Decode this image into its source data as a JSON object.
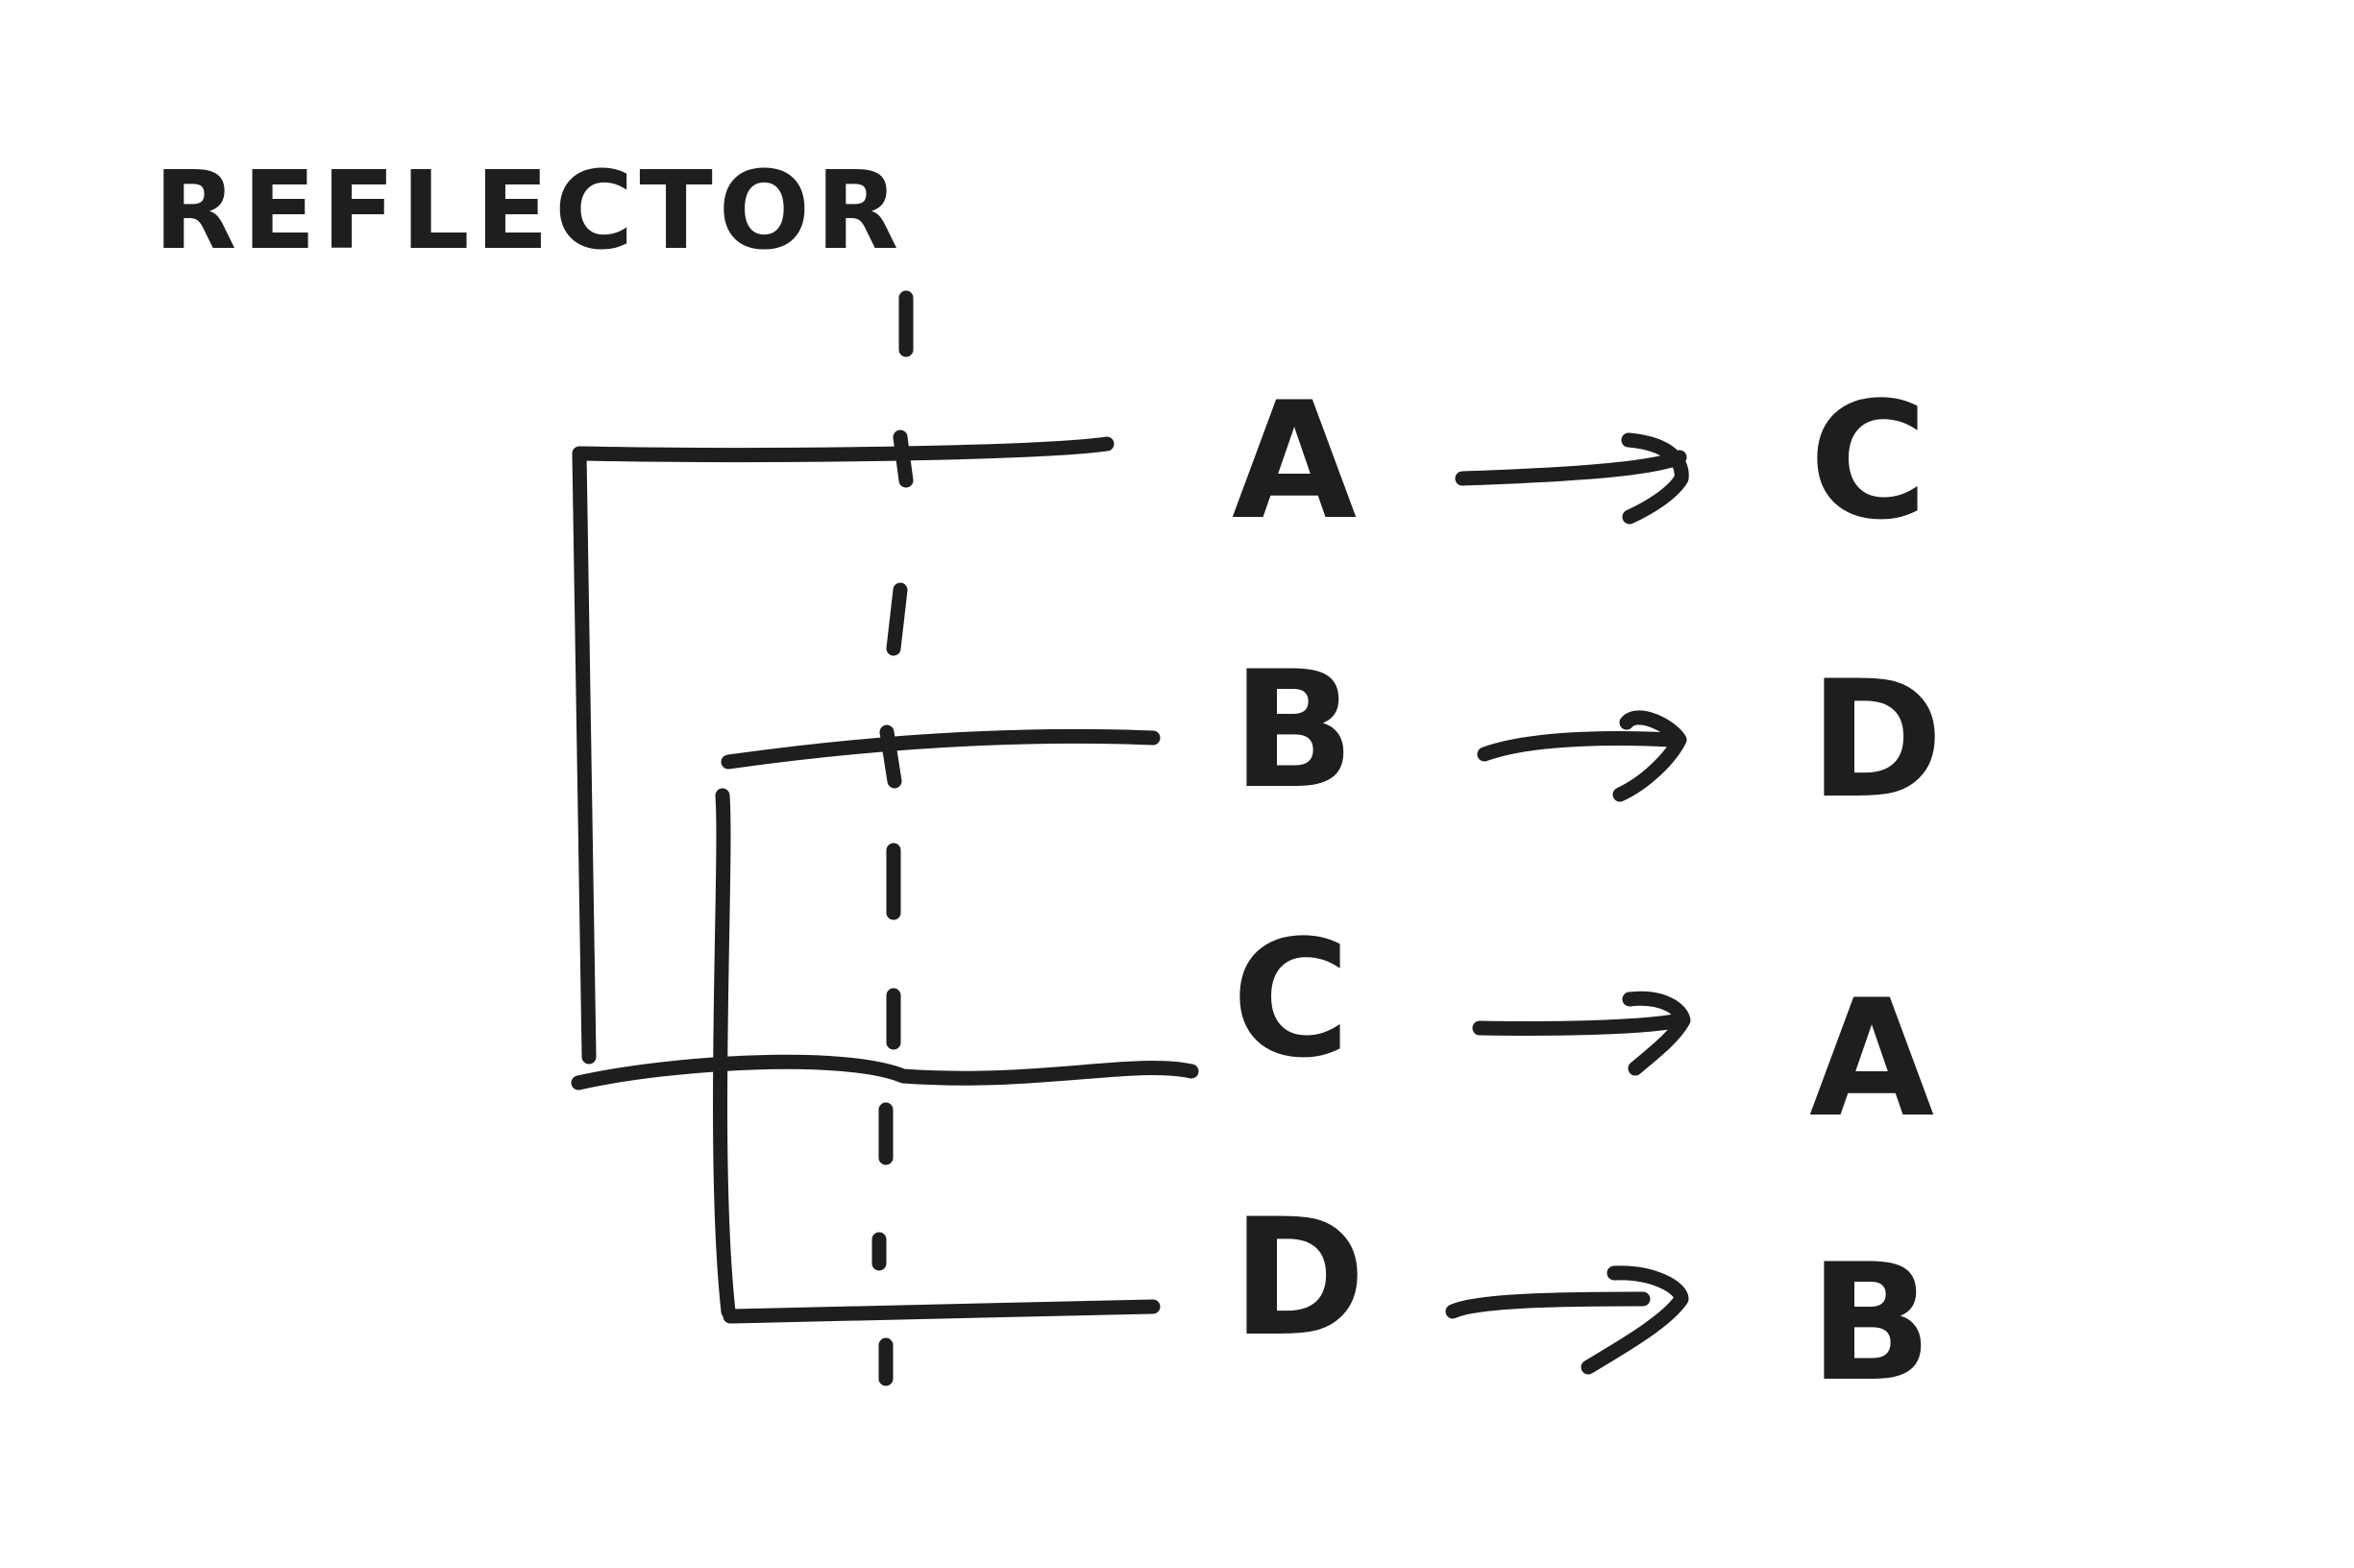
{
  "title": "REFLECTOR",
  "mappings": [
    {
      "from": "A",
      "to": "C"
    },
    {
      "from": "B",
      "to": "D"
    },
    {
      "from": "C",
      "to": "A"
    },
    {
      "from": "D",
      "to": "B"
    }
  ],
  "colors": {
    "ink": "#1e1e1e",
    "background": "#ffffff"
  }
}
